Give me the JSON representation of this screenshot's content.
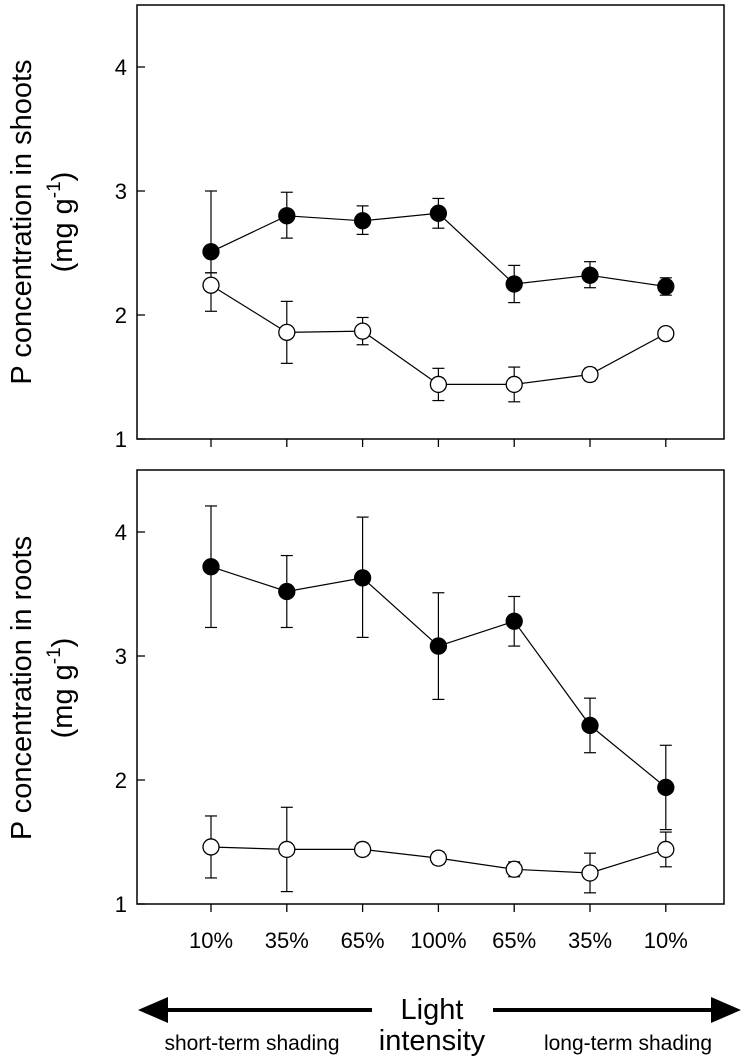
{
  "chart_data": [
    {
      "type": "line",
      "panel": "top",
      "categories": [
        "10%",
        "35%",
        "65%",
        "100%",
        "65%",
        "35%",
        "10%"
      ],
      "ylabel_line1": "P concentration in shoots",
      "ylabel_line2_prefix": "(mg g",
      "ylabel_superscript": "-1",
      "ylabel_line2_suffix": ")",
      "ylim": [
        1,
        4.5
      ],
      "yticks": [
        1,
        2,
        3,
        4
      ],
      "grid": false,
      "series": [
        {
          "name": "filled",
          "marker": "filled-circle",
          "values": [
            2.51,
            2.8,
            2.76,
            2.82,
            2.25,
            2.32,
            2.23
          ],
          "err_low": [
            2.34,
            2.62,
            2.65,
            2.7,
            2.1,
            2.22,
            2.16
          ],
          "err_high": [
            3.0,
            2.99,
            2.88,
            2.94,
            2.4,
            2.43,
            2.3
          ]
        },
        {
          "name": "open",
          "marker": "open-circle",
          "values": [
            2.24,
            1.86,
            1.87,
            1.44,
            1.44,
            1.52,
            1.85
          ],
          "err_low": [
            2.03,
            1.61,
            1.76,
            1.31,
            1.3,
            1.47,
            1.85
          ],
          "err_high": [
            2.34,
            2.11,
            1.98,
            1.57,
            1.58,
            1.57,
            1.85
          ]
        }
      ]
    },
    {
      "type": "line",
      "panel": "bottom",
      "categories": [
        "10%",
        "35%",
        "65%",
        "100%",
        "65%",
        "35%",
        "10%"
      ],
      "ylabel_line1": "P concentration in roots",
      "ylabel_line2_prefix": "(mg g",
      "ylabel_superscript": "-1",
      "ylabel_line2_suffix": ")",
      "ylim": [
        1,
        4.5
      ],
      "yticks": [
        1,
        2,
        3,
        4
      ],
      "grid": false,
      "series": [
        {
          "name": "filled",
          "marker": "filled-circle",
          "values": [
            3.72,
            3.52,
            3.63,
            3.08,
            3.28,
            2.44,
            1.94
          ],
          "err_low": [
            3.23,
            3.23,
            3.15,
            2.65,
            3.08,
            2.22,
            1.6
          ],
          "err_high": [
            4.21,
            3.81,
            4.12,
            3.51,
            3.48,
            2.66,
            2.28
          ]
        },
        {
          "name": "open",
          "marker": "open-circle",
          "values": [
            1.46,
            1.44,
            1.44,
            1.37,
            1.28,
            1.25,
            1.44
          ],
          "err_low": [
            1.21,
            1.1,
            1.39,
            1.32,
            1.22,
            1.09,
            1.3
          ],
          "err_high": [
            1.71,
            1.78,
            1.49,
            1.42,
            1.34,
            1.41,
            1.58
          ]
        }
      ]
    }
  ],
  "xaxis": {
    "center_label_line1": "Light",
    "center_label_line2": "intensity",
    "left_arrow_label": "short-term shading",
    "right_arrow_label": "long-term shading"
  }
}
